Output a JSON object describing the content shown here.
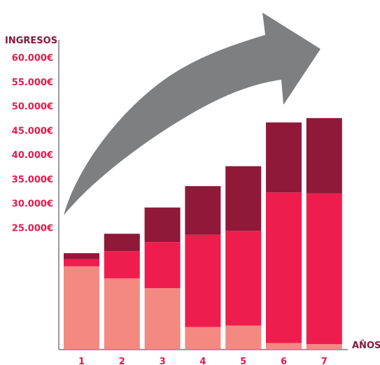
{
  "chart_data": {
    "type": "bar",
    "stacked": true,
    "ylabel": "INGRESOS",
    "xlabel": "AÑOS",
    "categories": [
      "1",
      "2",
      "3",
      "4",
      "5",
      "6",
      "7"
    ],
    "y_tick_labels": [
      "25.000€",
      "30.000€",
      "35.000€",
      "40.000€",
      "45.000€",
      "50.000€",
      "55.000€",
      "60.000€"
    ],
    "y_tick_values": [
      25000,
      30000,
      35000,
      40000,
      45000,
      50000,
      55000,
      60000
    ],
    "ylim": [
      0,
      66000
    ],
    "series": [
      {
        "values": [
          17000,
          14500,
          12500,
          4500,
          4800,
          1200,
          1000
        ]
      },
      {
        "values": [
          1500,
          5600,
          9500,
          19000,
          19500,
          31000,
          31000
        ]
      },
      {
        "values": [
          1200,
          3600,
          7100,
          10000,
          13300,
          14400,
          15500
        ]
      }
    ],
    "colors": [
      "#f48982",
      "#ef1d4e",
      "#901838"
    ],
    "trend_arrow": true,
    "grid": false,
    "legend": "none"
  },
  "colors": {
    "axis": "#7a7a7a",
    "label_dark": "#8a1538",
    "label_accent": "#e8194a",
    "arrow": "#7e7f80"
  }
}
